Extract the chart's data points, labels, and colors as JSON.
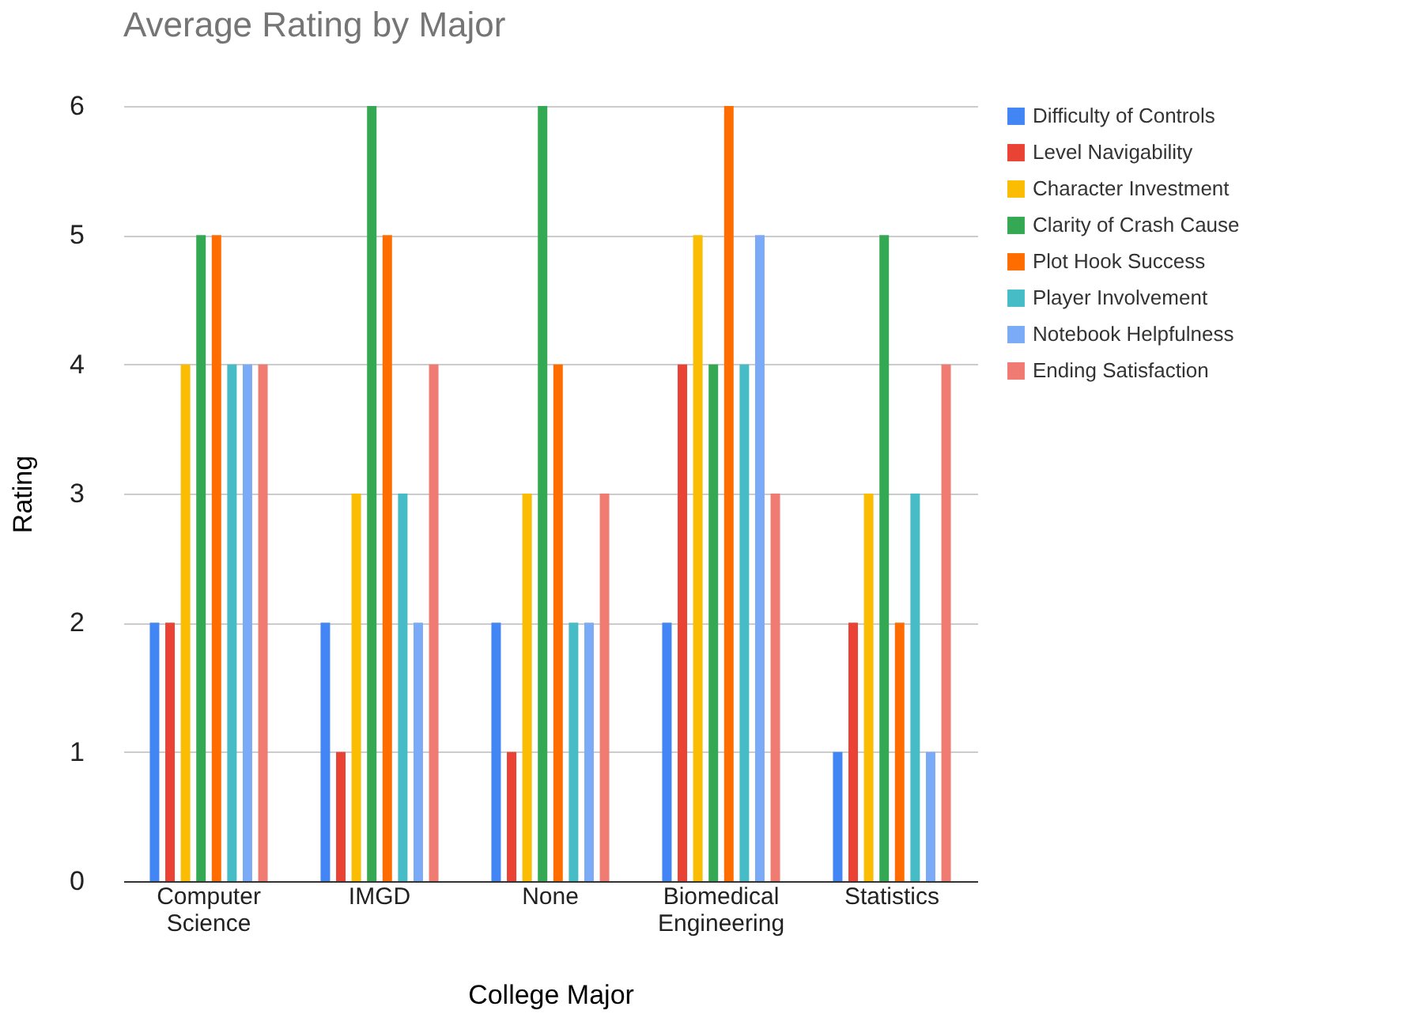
{
  "chart_data": {
    "type": "bar",
    "title": "Average Rating by Major",
    "xlabel": "College Major",
    "ylabel": "Rating",
    "categories": [
      "Computer Science",
      "IMGD",
      "None",
      "Biomedical Engineering",
      "Statistics"
    ],
    "series": [
      {
        "name": "Difficulty of Controls",
        "color": "#4285f4",
        "values": [
          2,
          2,
          2,
          2,
          1
        ]
      },
      {
        "name": "Level Navigability",
        "color": "#ea4335",
        "values": [
          2,
          1,
          1,
          4,
          2
        ]
      },
      {
        "name": "Character Investment",
        "color": "#fbbc04",
        "values": [
          4,
          3,
          3,
          5,
          3
        ]
      },
      {
        "name": "Clarity of Crash Cause",
        "color": "#34a853",
        "values": [
          5,
          6,
          6,
          4,
          5
        ]
      },
      {
        "name": "Plot Hook Success",
        "color": "#ff6d01",
        "values": [
          5,
          5,
          4,
          6,
          2
        ]
      },
      {
        "name": "Player Involvement",
        "color": "#46bdc6",
        "values": [
          4,
          3,
          2,
          4,
          3
        ]
      },
      {
        "name": "Notebook Helpfulness",
        "color": "#7baaf7",
        "values": [
          4,
          2,
          2,
          5,
          1
        ]
      },
      {
        "name": "Ending Satisfaction",
        "color": "#f07b72",
        "values": [
          4,
          4,
          3,
          3,
          4
        ]
      }
    ],
    "ylim": [
      0,
      6
    ],
    "yticks": [
      0,
      1,
      2,
      3,
      4,
      5,
      6
    ],
    "grid": "y",
    "legend": "top right"
  }
}
